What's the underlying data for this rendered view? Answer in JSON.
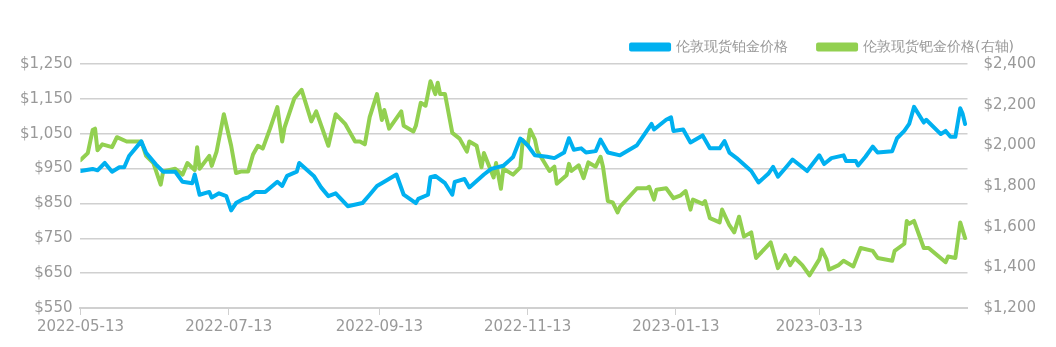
{
  "chart_data": {
    "type": "line",
    "xlim": [
      "2022-05-13",
      "2023-05-13"
    ],
    "xticks": [
      "2022-05-13",
      "2022-07-13",
      "2022-09-13",
      "2022-11-13",
      "2023-01-13",
      "2023-03-13"
    ],
    "ylim": [
      550,
      1250
    ],
    "yticks": [
      {
        "value": 550,
        "label": "$550"
      },
      {
        "value": 650,
        "label": "$650"
      },
      {
        "value": 750,
        "label": "$750"
      },
      {
        "value": 850,
        "label": "$850"
      },
      {
        "value": 950,
        "label": "$950"
      },
      {
        "value": 1050,
        "label": "$1,050"
      },
      {
        "value": 1150,
        "label": "$1,150"
      },
      {
        "value": 1250,
        "label": "$1,250"
      }
    ],
    "y2lim": [
      1200,
      2400
    ],
    "y2ticks": [
      {
        "value": 1200,
        "label": "$1,200"
      },
      {
        "value": 1400,
        "label": "$1,400"
      },
      {
        "value": 1600,
        "label": "$1,600"
      },
      {
        "value": 1800,
        "label": "$1,800"
      },
      {
        "value": 2000,
        "label": "$2,000"
      },
      {
        "value": 2200,
        "label": "$2,200"
      },
      {
        "value": 2400,
        "label": "$2,400"
      }
    ],
    "grid": "y",
    "legend": "top right",
    "marker": "none",
    "line_style": "solid",
    "series": [
      {
        "name": "伦敦现货铂金价格",
        "color": "#00b0f0",
        "x": [
          "2022-05-13",
          "2022-05-18",
          "2022-05-20",
          "2022-05-23",
          "2022-05-26",
          "2022-05-29",
          "2022-05-31",
          "2022-06-02",
          "2022-06-07",
          "2022-06-09",
          "2022-06-13",
          "2022-06-16",
          "2022-06-21",
          "2022-06-24",
          "2022-06-28",
          "2022-06-29",
          "2022-07-01",
          "2022-07-05",
          "2022-07-06",
          "2022-07-09",
          "2022-07-12",
          "2022-07-14",
          "2022-07-16",
          "2022-07-19",
          "2022-07-21",
          "2022-07-24",
          "2022-07-28",
          "2022-08-02",
          "2022-08-04",
          "2022-08-06",
          "2022-08-10",
          "2022-08-11",
          "2022-08-17",
          "2022-08-20",
          "2022-08-23",
          "2022-08-26",
          "2022-08-31",
          "2022-09-06",
          "2022-09-09",
          "2022-09-12",
          "2022-09-15",
          "2022-09-20",
          "2022-09-23",
          "2022-09-28",
          "2022-09-29",
          "2022-10-03",
          "2022-10-04",
          "2022-10-06",
          "2022-10-10",
          "2022-10-13",
          "2022-10-14",
          "2022-10-18",
          "2022-10-20",
          "2022-10-26",
          "2022-10-29",
          "2022-11-03",
          "2022-11-07",
          "2022-11-10",
          "2022-11-13",
          "2022-11-16",
          "2022-11-21",
          "2022-11-24",
          "2022-11-28",
          "2022-11-30",
          "2022-12-02",
          "2022-12-05",
          "2022-12-07",
          "2022-12-11",
          "2022-12-13",
          "2022-12-16",
          "2022-12-21",
          "2022-12-28",
          "2023-01-03",
          "2023-01-04",
          "2023-01-09",
          "2023-01-11",
          "2023-01-12",
          "2023-01-16",
          "2023-01-19",
          "2023-01-24",
          "2023-01-27",
          "2023-01-31",
          "2023-02-02",
          "2023-02-04",
          "2023-02-07",
          "2023-02-13",
          "2023-02-16",
          "2023-02-20",
          "2023-02-22",
          "2023-02-24",
          "2023-02-27",
          "2023-03-02",
          "2023-03-08",
          "2023-03-13",
          "2023-03-15",
          "2023-03-18",
          "2023-03-23",
          "2023-03-24",
          "2023-03-28",
          "2023-03-29",
          "2023-04-01",
          "2023-04-04",
          "2023-04-06",
          "2023-04-12",
          "2023-04-14",
          "2023-04-17",
          "2023-04-19",
          "2023-04-21",
          "2023-04-25",
          "2023-04-26",
          "2023-05-02",
          "2023-05-04",
          "2023-05-06",
          "2023-05-08",
          "2023-05-10",
          "2023-05-11",
          "2023-05-12"
        ],
        "values": [
          943,
          949,
          945,
          966,
          941,
          954,
          954,
          986,
          1028,
          995,
          962,
          941,
          941,
          912,
          908,
          933,
          875,
          883,
          867,
          879,
          871,
          830,
          851,
          863,
          867,
          883,
          883,
          912,
          900,
          929,
          941,
          966,
          929,
          896,
          871,
          879,
          842,
          851,
          875,
          900,
          912,
          933,
          875,
          851,
          863,
          875,
          925,
          929,
          908,
          875,
          912,
          920,
          896,
          933,
          949,
          958,
          983,
          1036,
          1017,
          988,
          984,
          980,
          996,
          1037,
          1004,
          1008,
          996,
          1000,
          1033,
          996,
          988,
          1017,
          1078,
          1062,
          1090,
          1097,
          1058,
          1062,
          1025,
          1045,
          1008,
          1008,
          1029,
          996,
          980,
          943,
          910,
          935,
          955,
          927,
          951,
          976,
          943,
          988,
          963,
          980,
          988,
          972,
          972,
          959,
          984,
          1013,
          996,
          1000,
          1037,
          1058,
          1078,
          1127,
          1082,
          1090,
          1049,
          1058,
          1041,
          1041,
          1123,
          1107,
          1078
        ]
      },
      {
        "name": "伦敦现货钯金价格(右轴)",
        "color": "#92d050",
        "axis": "y2",
        "x": [
          "2022-05-13",
          "2022-05-16",
          "2022-05-18",
          "2022-05-19",
          "2022-05-20",
          "2022-05-22",
          "2022-05-26",
          "2022-05-28",
          "2022-06-01",
          "2022-06-07",
          "2022-06-09",
          "2022-06-12",
          "2022-06-15",
          "2022-06-16",
          "2022-06-21",
          "2022-06-24",
          "2022-06-26",
          "2022-06-29",
          "2022-06-30",
          "2022-07-01",
          "2022-07-05",
          "2022-07-06",
          "2022-07-08",
          "2022-07-11",
          "2022-07-14",
          "2022-07-16",
          "2022-07-18",
          "2022-07-21",
          "2022-07-23",
          "2022-07-25",
          "2022-07-27",
          "2022-07-30",
          "2022-08-02",
          "2022-08-04",
          "2022-08-05",
          "2022-08-09",
          "2022-08-12",
          "2022-08-16",
          "2022-08-18",
          "2022-08-23",
          "2022-08-26",
          "2022-08-30",
          "2022-09-03",
          "2022-09-05",
          "2022-09-07",
          "2022-09-09",
          "2022-09-12",
          "2022-09-14",
          "2022-09-15",
          "2022-09-17",
          "2022-09-22",
          "2022-09-23",
          "2022-09-27",
          "2022-09-28",
          "2022-09-30",
          "2022-10-02",
          "2022-10-04",
          "2022-10-06",
          "2022-10-07",
          "2022-10-08",
          "2022-10-10",
          "2022-10-13",
          "2022-10-16",
          "2022-10-19",
          "2022-10-20",
          "2022-10-23",
          "2022-10-25",
          "2022-10-26",
          "2022-10-30",
          "2022-10-31",
          "2022-11-02",
          "2022-11-03",
          "2022-11-07",
          "2022-11-10",
          "2022-11-11",
          "2022-11-13",
          "2022-11-14",
          "2022-11-16",
          "2022-11-17",
          "2022-11-22",
          "2022-11-24",
          "2022-11-25",
          "2022-11-29",
          "2022-11-30",
          "2022-12-01",
          "2022-12-04",
          "2022-12-06",
          "2022-12-08",
          "2022-12-11",
          "2022-12-13",
          "2022-12-14",
          "2022-12-16",
          "2022-12-18",
          "2022-12-20",
          "2022-12-21",
          "2022-12-28",
          "2023-01-01",
          "2023-01-02",
          "2023-01-04",
          "2023-01-05",
          "2023-01-09",
          "2023-01-12",
          "2023-01-15",
          "2023-01-17",
          "2023-01-19",
          "2023-01-20",
          "2023-01-24",
          "2023-01-25",
          "2023-01-27",
          "2023-01-31",
          "2023-02-01",
          "2023-02-04",
          "2023-02-06",
          "2023-02-08",
          "2023-02-10",
          "2023-02-13",
          "2023-02-15",
          "2023-02-21",
          "2023-02-24",
          "2023-02-27",
          "2023-03-01",
          "2023-03-03",
          "2023-03-06",
          "2023-03-09",
          "2023-03-13",
          "2023-03-14",
          "2023-03-16",
          "2023-03-17",
          "2023-03-21",
          "2023-03-23",
          "2023-03-27",
          "2023-03-30",
          "2023-04-04",
          "2023-04-06",
          "2023-04-12",
          "2023-04-13",
          "2023-04-17",
          "2023-04-18",
          "2023-04-19",
          "2023-04-21",
          "2023-04-25",
          "2023-04-27",
          "2023-05-04",
          "2023-05-05",
          "2023-05-08",
          "2023-05-10",
          "2023-05-12"
        ],
        "values": [
          1927,
          1962,
          2075,
          2082,
          1976,
          2005,
          1991,
          2040,
          2019,
          2019,
          1948,
          1913,
          1807,
          1871,
          1885,
          1856,
          1913,
          1878,
          1991,
          1885,
          1948,
          1899,
          1969,
          2153,
          1998,
          1864,
          1871,
          1871,
          1955,
          1998,
          1984,
          2082,
          2188,
          2019,
          2089,
          2231,
          2273,
          2118,
          2167,
          1998,
          2153,
          2104,
          2019,
          2019,
          2005,
          2139,
          2252,
          2125,
          2174,
          2082,
          2167,
          2096,
          2068,
          2096,
          2209,
          2195,
          2315,
          2252,
          2308,
          2252,
          2252,
          2061,
          2033,
          1969,
          2019,
          1998,
          1892,
          1962,
          1842,
          1913,
          1786,
          1885,
          1856,
          1892,
          2026,
          2000,
          2077,
          2028,
          1972,
          1874,
          1895,
          1811,
          1853,
          1909,
          1874,
          1902,
          1839,
          1916,
          1895,
          1944,
          1895,
          1726,
          1719,
          1670,
          1698,
          1789,
          1789,
          1796,
          1733,
          1782,
          1789,
          1740,
          1754,
          1775,
          1684,
          1733,
          1712,
          1726,
          1642,
          1621,
          1684,
          1607,
          1572,
          1649,
          1551,
          1572,
          1446,
          1523,
          1396,
          1460,
          1411,
          1446,
          1411,
          1361,
          1439,
          1488,
          1439,
          1389,
          1411,
          1432,
          1404,
          1495,
          1481,
          1446,
          1432,
          1481,
          1516,
          1628,
          1614,
          1628,
          1495,
          1495,
          1425,
          1453,
          1446,
          1621,
          1544
        ]
      }
    ]
  }
}
